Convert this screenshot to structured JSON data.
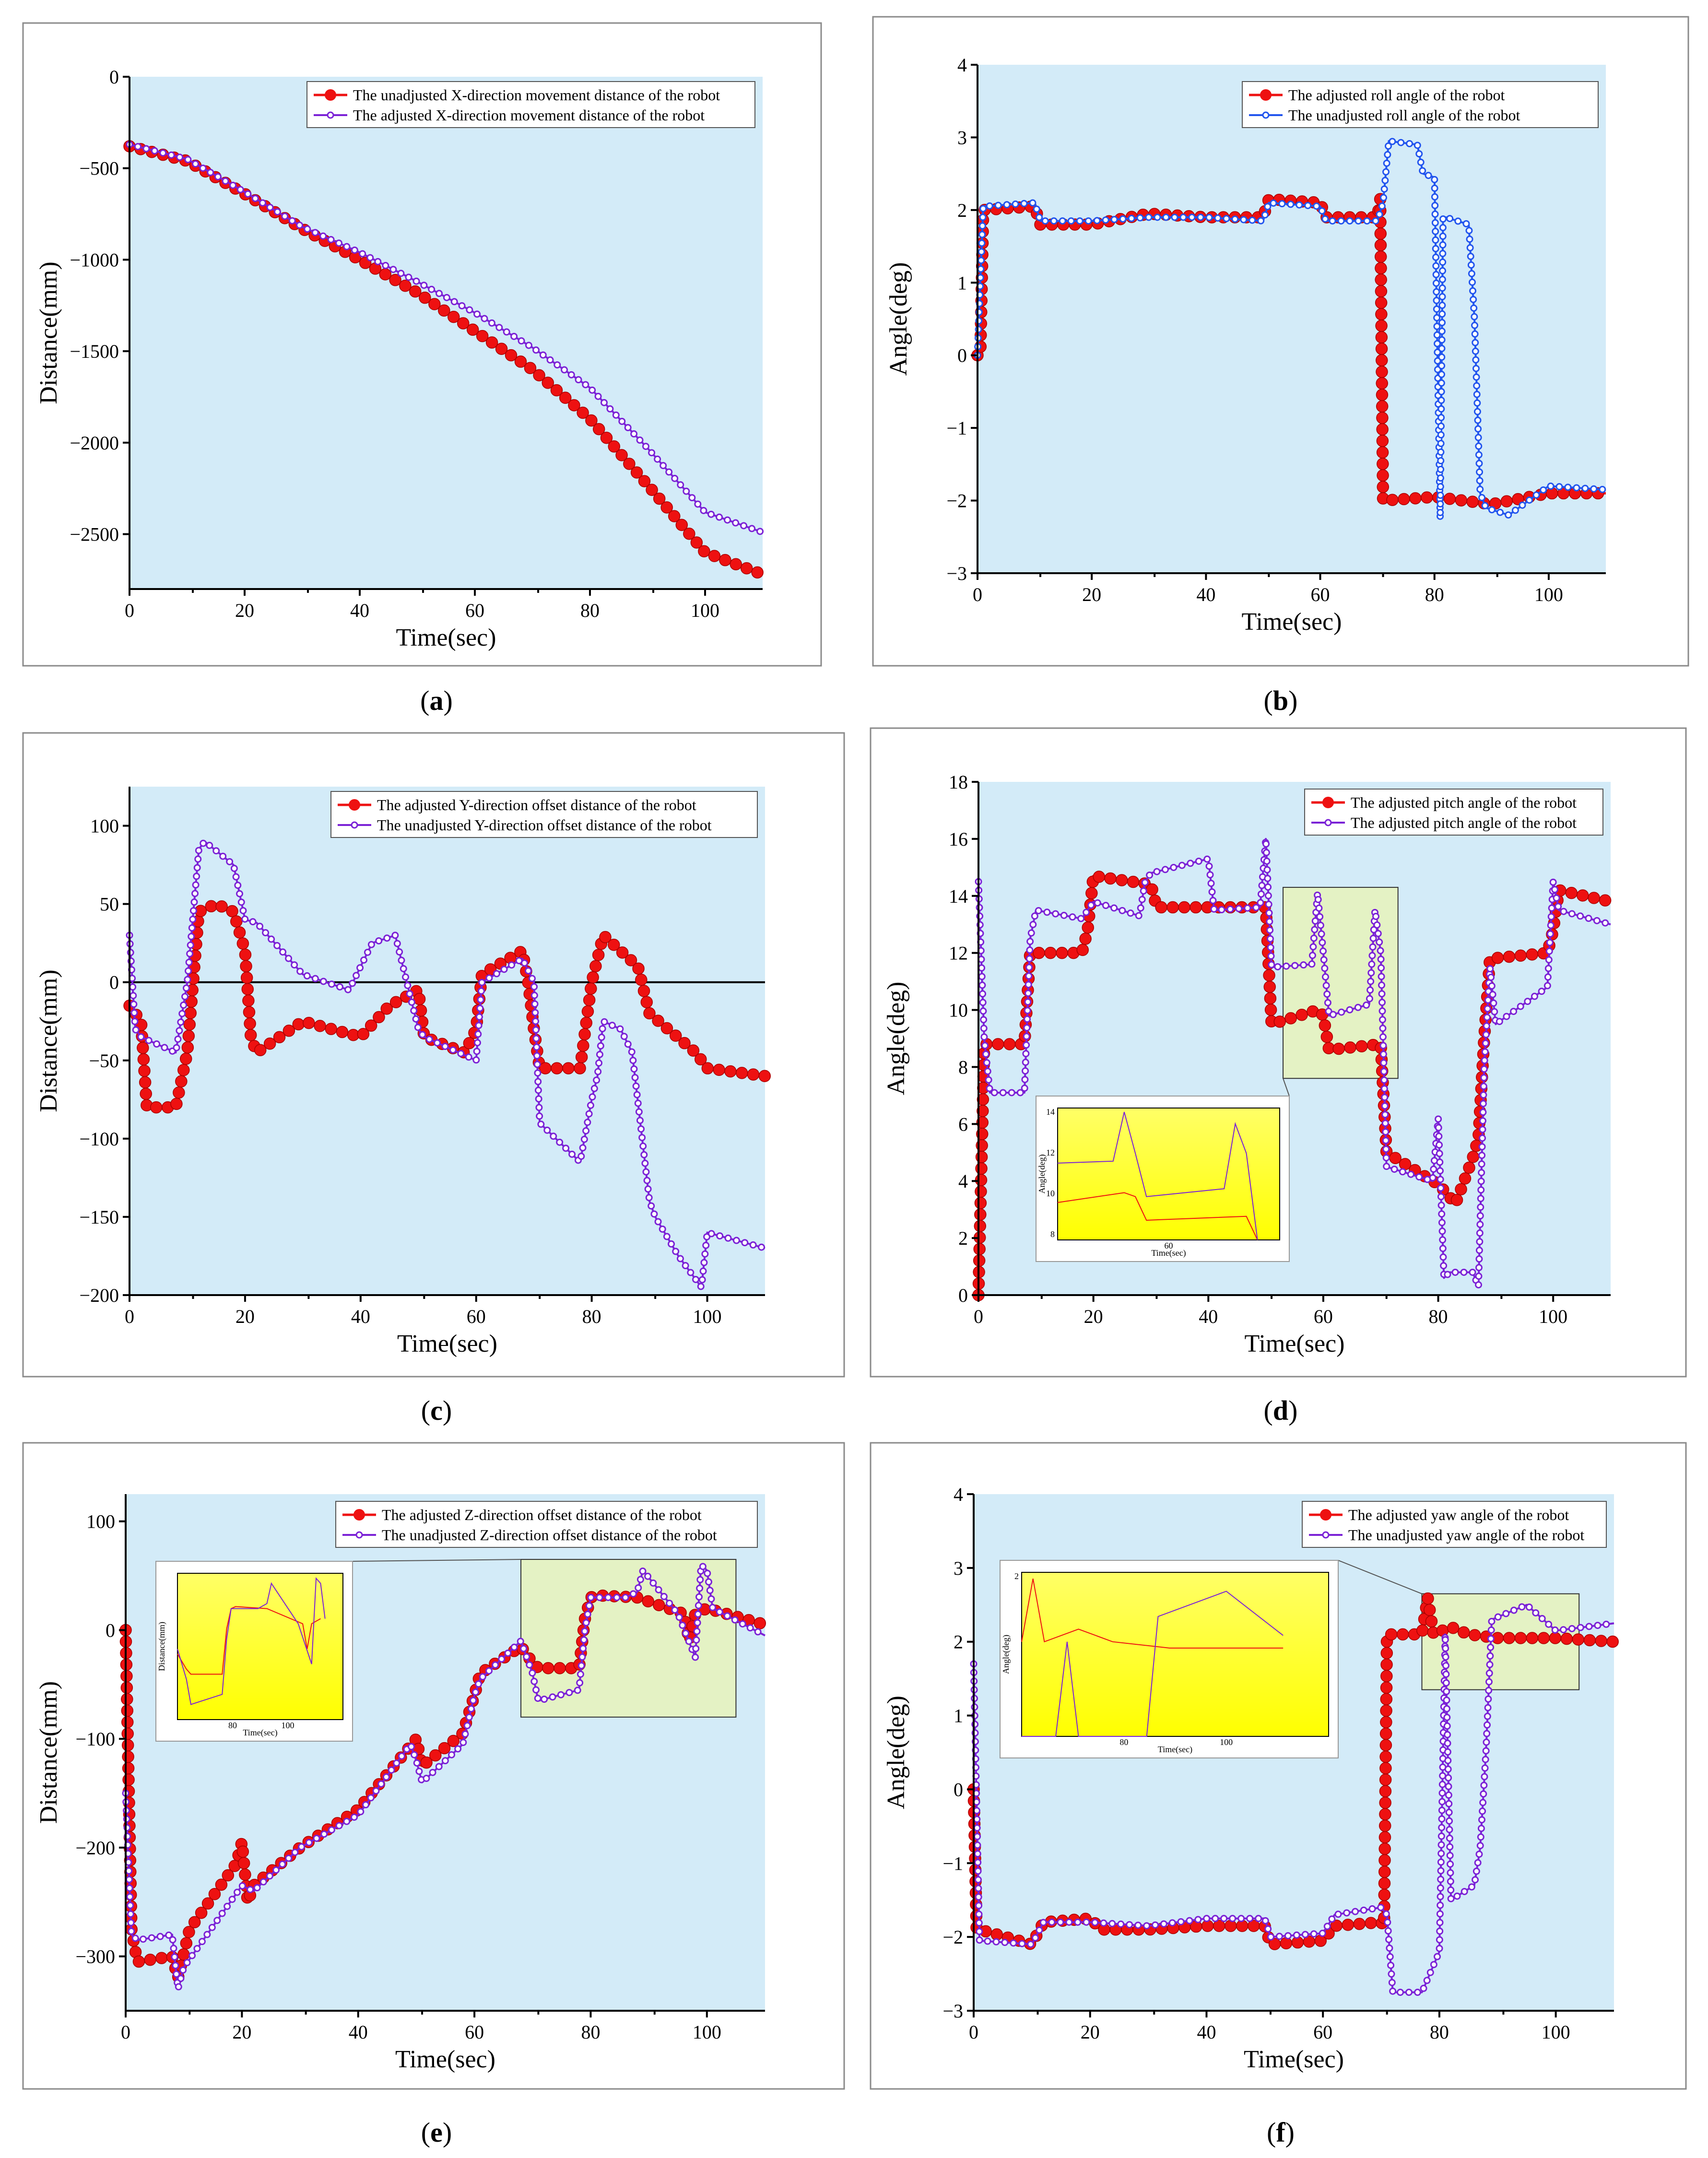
{
  "colors": {
    "red": "#ee1111",
    "purple": "#7b22d6",
    "blue": "#2255ee",
    "plot_bg": "#d3ebf8",
    "zoom_box": "#e4f2c4",
    "inset_bg": "#ffff66"
  },
  "chart_data": [
    {
      "id": "a",
      "type": "line",
      "caption": "(a)",
      "xlabel": "Time(sec)",
      "ylabel": "Distance(mm)",
      "xlim": [
        0,
        110
      ],
      "ylim": [
        -2800,
        0
      ],
      "xticks": [
        0,
        20,
        40,
        60,
        80,
        100
      ],
      "yticks": [
        0,
        -500,
        -1000,
        -1500,
        -2000,
        -2500
      ],
      "legend_position": "top-right",
      "series": [
        {
          "name": "The unadjusted X-direction movement distance of the robot",
          "color": "red",
          "marker": "large",
          "x": [
            0,
            10,
            20,
            30,
            40,
            50,
            60,
            70,
            80,
            90,
            100,
            110
          ],
          "y": [
            -380,
            -460,
            -640,
            -830,
            -1000,
            -1180,
            -1390,
            -1600,
            -1870,
            -2230,
            -2600,
            -2720
          ]
        },
        {
          "name": "The adjusted X-direction movement distance of the robot",
          "color": "purple",
          "marker": "small",
          "x": [
            0,
            10,
            20,
            30,
            40,
            50,
            60,
            70,
            80,
            90,
            100,
            110
          ],
          "y": [
            -370,
            -450,
            -630,
            -820,
            -960,
            -1120,
            -1290,
            -1480,
            -1700,
            -2030,
            -2380,
            -2490
          ]
        }
      ]
    },
    {
      "id": "b",
      "type": "line",
      "caption": "(b)",
      "xlabel": "Time(sec)",
      "ylabel": "Angle(deg)",
      "xlim": [
        0,
        110
      ],
      "ylim": [
        -3,
        4
      ],
      "xticks": [
        0,
        20,
        40,
        60,
        80,
        100
      ],
      "yticks": [
        4,
        3,
        2,
        1,
        0,
        -1,
        -2,
        -3
      ],
      "legend_position": "top-right",
      "series": [
        {
          "name": "The adjusted roll angle of the robot",
          "color": "red",
          "marker": "large",
          "x": [
            0,
            0.5,
            1,
            10,
            11,
            20,
            30,
            40,
            50,
            51,
            60,
            61,
            70,
            70.5,
            71,
            80,
            90,
            100,
            110
          ],
          "y": [
            0,
            0,
            2.0,
            2.05,
            1.8,
            1.8,
            1.95,
            1.9,
            1.9,
            2.15,
            2.1,
            1.9,
            1.9,
            2.15,
            -2.0,
            -1.95,
            -2.05,
            -1.9,
            -1.9
          ]
        },
        {
          "name": "The unadjusted roll angle of the robot",
          "color": "blue",
          "marker": "small",
          "x": [
            0,
            1,
            10,
            11,
            20,
            30,
            40,
            50,
            51,
            60,
            61,
            70,
            71,
            72,
            77,
            78,
            80,
            81,
            81.5,
            82,
            86,
            87,
            88,
            89,
            93,
            100,
            110
          ],
          "y": [
            0,
            2.05,
            2.1,
            1.85,
            1.85,
            1.9,
            1.9,
            1.85,
            2.1,
            2.05,
            1.85,
            1.85,
            2.1,
            2.95,
            2.9,
            2.5,
            2.45,
            -2.25,
            1.9,
            1.9,
            1.8,
            0.5,
            -1.9,
            -2.1,
            -2.2,
            -1.8,
            -1.85
          ]
        }
      ]
    },
    {
      "id": "c",
      "type": "line",
      "caption": "(c)",
      "xlabel": "Time(sec)",
      "ylabel": "Distance(mm)",
      "xlim": [
        0,
        110
      ],
      "ylim": [
        -200,
        125
      ],
      "xticks": [
        0,
        20,
        40,
        60,
        80,
        100
      ],
      "yticks": [
        100,
        50,
        0,
        -50,
        -100,
        -150,
        -200
      ],
      "legend_position": "top-right",
      "series": [
        {
          "name": "The adjusted Y-direction offset distance of the robot",
          "color": "red",
          "marker": "large",
          "x": [
            0,
            2,
            3,
            8,
            10,
            12,
            15,
            18,
            20,
            21,
            22,
            30,
            40,
            45,
            50,
            51,
            58,
            60,
            61,
            68,
            69,
            70,
            71,
            78,
            80,
            82,
            88,
            90,
            98,
            100,
            110
          ],
          "y": [
            -15,
            -25,
            -80,
            -80,
            -45,
            45,
            50,
            45,
            20,
            -35,
            -45,
            -25,
            -35,
            -15,
            -5,
            -35,
            -45,
            -30,
            5,
            20,
            0,
            -30,
            -55,
            -55,
            0,
            30,
            10,
            -20,
            -45,
            -55,
            -60
          ]
        },
        {
          "name": "The unadjusted Y-direction offset distance of the robot",
          "color": "purple",
          "marker": "small",
          "x": [
            0,
            1,
            2,
            8,
            10,
            12,
            13,
            18,
            20,
            22,
            30,
            38,
            42,
            46,
            50,
            51,
            60,
            61,
            68,
            70,
            71,
            78,
            80,
            81,
            82,
            85,
            87,
            90,
            91,
            95,
            99,
            100,
            110
          ],
          "y": [
            30,
            -30,
            -35,
            -45,
            0,
            85,
            90,
            75,
            40,
            38,
            5,
            -5,
            25,
            30,
            -30,
            -35,
            -50,
            0,
            15,
            0,
            -90,
            -115,
            -75,
            -60,
            -25,
            -30,
            -45,
            -140,
            -150,
            -175,
            -195,
            -160,
            -170
          ]
        }
      ]
    },
    {
      "id": "d",
      "type": "line",
      "caption": "(d)",
      "xlabel": "Time(sec)",
      "ylabel": "Angle(deg)",
      "xlim": [
        0,
        110
      ],
      "ylim": [
        0,
        18
      ],
      "xticks": [
        0,
        20,
        40,
        60,
        80,
        100
      ],
      "yticks": [
        18,
        16,
        14,
        12,
        10,
        8,
        6,
        4,
        2,
        0
      ],
      "legend_position": "top-right",
      "series": [
        {
          "name": "The adjusted pitch angle of the robot",
          "color": "red",
          "marker": "large",
          "x": [
            0,
            1,
            2,
            8,
            9,
            18,
            19,
            20,
            30,
            31,
            40,
            50,
            51,
            59,
            60,
            61,
            70,
            71,
            79,
            80,
            83,
            86,
            87,
            88,
            89,
            99,
            100,
            101,
            110
          ],
          "y": [
            0,
            8.8,
            8.8,
            8.8,
            12.0,
            12.0,
            12.8,
            14.7,
            14.4,
            13.6,
            13.6,
            13.6,
            9.5,
            10.0,
            9.8,
            8.6,
            8.8,
            5.0,
            4.0,
            3.9,
            3.2,
            4.8,
            5.5,
            9.0,
            11.8,
            12.0,
            12.8,
            14.2,
            13.8
          ]
        },
        {
          "name": "The adjusted pitch angle of the robot",
          "color": "purple",
          "marker": "small",
          "x": [
            0,
            1,
            2,
            8,
            9,
            10,
            18,
            19,
            20,
            28,
            29,
            30,
            40,
            41,
            49,
            50,
            51,
            58,
            59,
            60,
            61,
            68,
            69,
            70,
            71,
            79,
            80,
            81,
            82,
            86,
            87,
            88,
            89,
            90,
            99,
            100,
            101,
            110
          ],
          "y": [
            14.5,
            9.0,
            7.1,
            7.1,
            12.5,
            13.5,
            13.2,
            13.5,
            13.8,
            13.3,
            14.5,
            14.8,
            15.3,
            13.5,
            13.6,
            16.0,
            11.5,
            11.6,
            14.1,
            12.0,
            9.8,
            10.2,
            13.5,
            12.0,
            4.5,
            4.0,
            6.2,
            0.6,
            0.8,
            0.8,
            0.3,
            8.0,
            11.5,
            9.5,
            10.8,
            14.5,
            13.5,
            13.0
          ]
        }
      ],
      "inset": {
        "xlabel": "Time(sec)",
        "ylabel": "Angle(deg)",
        "xticks": [
          "60"
        ],
        "yticks": [
          "14",
          "12",
          "10",
          "8"
        ]
      }
    },
    {
      "id": "e",
      "type": "line",
      "caption": "(e)",
      "xlabel": "Time(sec)",
      "ylabel": "Distance(mm)",
      "xlim": [
        0,
        110
      ],
      "ylim": [
        -350,
        125
      ],
      "xticks": [
        0,
        20,
        40,
        60,
        80,
        100
      ],
      "yticks": [
        100,
        0,
        -100,
        -200,
        -300
      ],
      "legend_position": "top-right",
      "series": [
        {
          "name": "The adjusted Z-direction offset distance of the robot",
          "color": "red",
          "marker": "large",
          "x": [
            0,
            1,
            2,
            8,
            9,
            11,
            19,
            20,
            21,
            22,
            30,
            40,
            50,
            51,
            58,
            60,
            61,
            68,
            70,
            71,
            78,
            79,
            80,
            81,
            88,
            96,
            97,
            98,
            100,
            110
          ],
          "y": [
            0,
            -275,
            -305,
            -300,
            -320,
            -275,
            -215,
            -195,
            -250,
            -235,
            -200,
            -165,
            -100,
            -125,
            -95,
            -60,
            -40,
            -15,
            -30,
            -35,
            -35,
            10,
            30,
            32,
            30,
            15,
            -10,
            15,
            20,
            5
          ]
        },
        {
          "name": "The unadjusted Z-direction offset distance of the robot",
          "color": "purple",
          "marker": "small",
          "x": [
            0,
            1,
            2,
            8,
            9,
            10,
            20,
            22,
            30,
            40,
            49,
            50,
            51,
            58,
            60,
            61,
            68,
            70,
            71,
            78,
            79,
            80,
            86,
            88,
            89,
            95,
            98,
            99,
            100,
            101,
            110
          ],
          "y": [
            -150,
            -280,
            -285,
            -280,
            -330,
            -310,
            -235,
            -240,
            -200,
            -170,
            -105,
            -120,
            -140,
            -105,
            -60,
            -45,
            -10,
            -40,
            -65,
            -55,
            0,
            30,
            30,
            35,
            55,
            15,
            -25,
            60,
            55,
            20,
            -5
          ]
        }
      ],
      "inset": {
        "xlabel": "Time(sec)",
        "ylabel": "Distance(mm)",
        "xticks": [
          "80",
          "100"
        ]
      }
    },
    {
      "id": "f",
      "type": "line",
      "caption": "(f)",
      "xlabel": "Time(sec)",
      "ylabel": "Angle(deg)",
      "xlim": [
        0,
        110
      ],
      "ylim": [
        -3,
        4
      ],
      "xticks": [
        0,
        20,
        40,
        60,
        80,
        100
      ],
      "yticks": [
        4,
        3,
        2,
        1,
        0,
        -1,
        -2,
        -3
      ],
      "legend_position": "top-right",
      "series": [
        {
          "name": "The adjusted yaw angle of the robot",
          "color": "red",
          "marker": "large",
          "x": [
            0,
            0.5,
            1,
            10,
            12,
            20,
            22,
            30,
            40,
            50,
            51,
            60,
            62,
            70,
            70.5,
            71,
            77,
            78,
            79,
            82,
            85,
            90,
            100,
            110
          ],
          "y": [
            0,
            -1.9,
            -1.9,
            -2.1,
            -1.8,
            -1.75,
            -1.9,
            -1.9,
            -1.85,
            -1.85,
            -2.1,
            -2.05,
            -1.85,
            -1.8,
            -1.85,
            2.1,
            2.1,
            2.6,
            2.1,
            2.2,
            2.1,
            2.05,
            2.05,
            2.0
          ]
        },
        {
          "name": "The unadjusted yaw angle of the robot",
          "color": "purple",
          "marker": "small",
          "x": [
            0,
            1,
            10,
            12,
            20,
            30,
            40,
            50,
            51,
            60,
            62,
            70,
            71,
            72,
            77,
            80,
            81,
            82,
            86,
            87,
            88,
            89,
            95,
            100,
            110
          ],
          "y": [
            1.7,
            -2.05,
            -2.1,
            -1.8,
            -1.8,
            -1.85,
            -1.75,
            -1.75,
            -2.0,
            -1.95,
            -1.7,
            -1.6,
            -1.7,
            -2.75,
            -2.75,
            -2.2,
            2.1,
            -1.5,
            -1.3,
            -0.8,
            0.5,
            2.3,
            2.5,
            2.15,
            2.25
          ]
        }
      ],
      "inset": {
        "xlabel": "Time(sec)",
        "ylabel": "Angle(deg)",
        "xticks": [
          "80",
          "100"
        ],
        "yticks": [
          "2"
        ]
      }
    }
  ]
}
